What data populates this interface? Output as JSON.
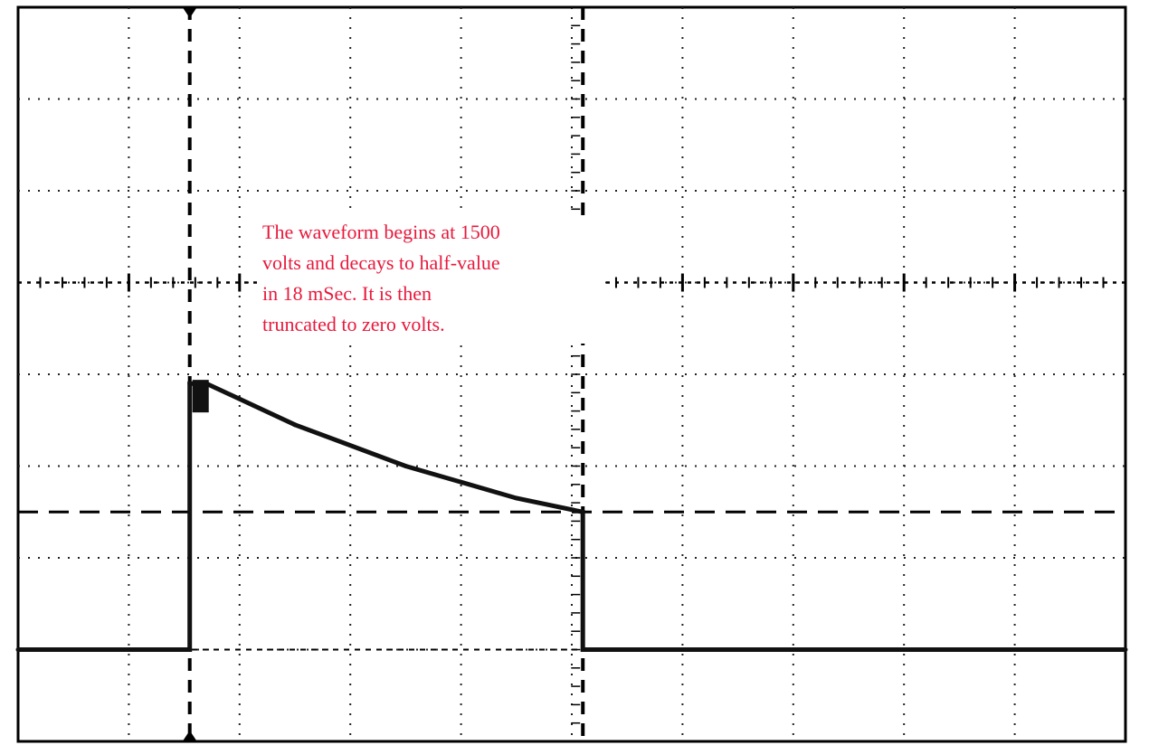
{
  "chart_data": {
    "type": "line",
    "title": "",
    "xlabel": "",
    "ylabel": "",
    "grid": true,
    "xlim": [
      0,
      10
    ],
    "ylim": [
      -1,
      7
    ],
    "x_divisions": 10,
    "y_divisions": 8,
    "series": [
      {
        "name": "",
        "x": [
          0,
          1.55,
          1.55,
          1.7,
          2.5,
          3.5,
          4.5,
          5.1,
          5.1,
          10
        ],
        "y": [
          0,
          0,
          2.9,
          2.9,
          2.45,
          2.0,
          1.65,
          1.5,
          0,
          0
        ]
      }
    ],
    "cursors": {
      "vertical": [
        1.55,
        5.1
      ],
      "horizontal": [
        1.5
      ]
    },
    "annotation": {
      "lines": [
        "The waveform begins at 1500",
        "volts and decays to half-value",
        "in 18 mSec.  It is then",
        "truncated to zero volts."
      ],
      "color": "#e8193c"
    },
    "colors": {
      "trace": "#111111",
      "grid": "#222222",
      "background": "#ffffff"
    }
  }
}
